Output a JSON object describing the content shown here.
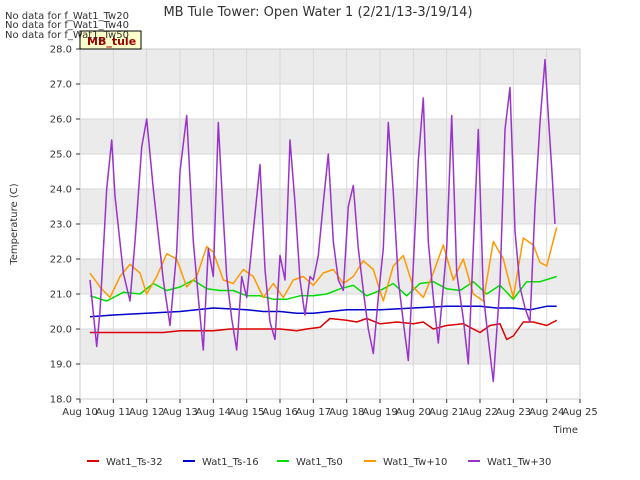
{
  "nodata_notes": [
    "No data for f_Wat1_Tw20",
    "No data for f_Wat1_Tw40",
    "No data for f_Wat1_Tw50"
  ],
  "badge_label": "MB_tule",
  "colors": {
    "band": "#ebebeb",
    "grid": "#d9d9d9",
    "badge_fill": "#ffffcc",
    "badge_text": "#990000"
  },
  "chart_data": {
    "type": "line",
    "title": "MB Tule Tower: Open Water 1 (2/21/13-3/19/14)",
    "xlabel": "Time",
    "ylabel": "Temperature (C)",
    "xlim": [
      10,
      25
    ],
    "ylim": [
      18.0,
      28.0
    ],
    "xticks": [
      {
        "value": 10,
        "label": "Aug 10"
      },
      {
        "value": 11,
        "label": "Aug 11"
      },
      {
        "value": 12,
        "label": "Aug 12"
      },
      {
        "value": 13,
        "label": "Aug 13"
      },
      {
        "value": 14,
        "label": "Aug 14"
      },
      {
        "value": 15,
        "label": "Aug 15"
      },
      {
        "value": 16,
        "label": "Aug 16"
      },
      {
        "value": 17,
        "label": "Aug 17"
      },
      {
        "value": 18,
        "label": "Aug 18"
      },
      {
        "value": 19,
        "label": "Aug 19"
      },
      {
        "value": 20,
        "label": "Aug 20"
      },
      {
        "value": 21,
        "label": "Aug 21"
      },
      {
        "value": 22,
        "label": "Aug 22"
      },
      {
        "value": 23,
        "label": "Aug 23"
      },
      {
        "value": 24,
        "label": "Aug 24"
      },
      {
        "value": 25,
        "label": "Aug 25"
      }
    ],
    "yticks": [
      "18.0",
      "19.0",
      "20.0",
      "21.0",
      "22.0",
      "23.0",
      "24.0",
      "25.0",
      "26.0",
      "27.0",
      "28.0"
    ],
    "grid": true,
    "legend_position": "bottom",
    "series": [
      {
        "name": "Wat1_Ts-32",
        "color": "#dd0000",
        "x": [
          10.3,
          11,
          11.5,
          12,
          12.5,
          13,
          13.5,
          14,
          14.5,
          15,
          15.5,
          16,
          16.5,
          16.8,
          17.2,
          17.5,
          18,
          18.3,
          18.6,
          19,
          19.5,
          20,
          20.3,
          20.6,
          21,
          21.5,
          22,
          22.3,
          22.6,
          22.8,
          23,
          23.3,
          23.6,
          24,
          24.3
        ],
        "y": [
          19.9,
          19.9,
          19.9,
          19.9,
          19.9,
          19.95,
          19.95,
          19.95,
          20.0,
          20.0,
          20.0,
          20.0,
          19.95,
          20.0,
          20.05,
          20.3,
          20.25,
          20.2,
          20.3,
          20.15,
          20.2,
          20.15,
          20.2,
          20.0,
          20.1,
          20.15,
          19.9,
          20.1,
          20.15,
          19.7,
          19.8,
          20.2,
          20.2,
          20.1,
          20.25
        ]
      },
      {
        "name": "Wat1_Ts-16",
        "color": "#0000cc",
        "x": [
          10.3,
          11,
          12,
          13,
          13.5,
          14,
          15,
          15.5,
          16,
          16.5,
          17,
          17.5,
          18,
          19,
          20,
          21,
          22,
          22.5,
          23,
          23.5,
          24,
          24.3
        ],
        "y": [
          20.35,
          20.4,
          20.45,
          20.5,
          20.55,
          20.6,
          20.55,
          20.5,
          20.5,
          20.45,
          20.45,
          20.5,
          20.55,
          20.55,
          20.6,
          20.65,
          20.65,
          20.6,
          20.6,
          20.55,
          20.65,
          20.65
        ]
      },
      {
        "name": "Wat1_Ts0",
        "color": "#00dd00",
        "x": [
          10.3,
          10.8,
          11.3,
          11.8,
          12.2,
          12.6,
          13,
          13.4,
          13.8,
          14.2,
          14.6,
          15,
          15.4,
          15.8,
          16.2,
          16.6,
          17,
          17.4,
          17.8,
          18.2,
          18.6,
          19,
          19.4,
          19.8,
          20.2,
          20.6,
          21,
          21.4,
          21.8,
          22.2,
          22.6,
          23,
          23.4,
          23.8,
          24.3
        ],
        "y": [
          20.95,
          20.8,
          21.05,
          21.0,
          21.3,
          21.1,
          21.2,
          21.4,
          21.15,
          21.1,
          21.1,
          20.95,
          20.95,
          20.85,
          20.85,
          20.95,
          20.95,
          21.0,
          21.15,
          21.25,
          20.95,
          21.1,
          21.3,
          20.95,
          21.3,
          21.35,
          21.15,
          21.1,
          21.35,
          21.0,
          21.25,
          20.85,
          21.35,
          21.35,
          21.5
        ]
      },
      {
        "name": "Wat1_Tw+10",
        "color": "#ff9900",
        "x": [
          10.3,
          10.6,
          10.9,
          11.2,
          11.5,
          11.8,
          12.0,
          12.3,
          12.6,
          12.9,
          13.2,
          13.5,
          13.8,
          14.0,
          14.3,
          14.6,
          14.9,
          15.2,
          15.5,
          15.8,
          16.1,
          16.4,
          16.7,
          17.0,
          17.3,
          17.6,
          17.9,
          18.2,
          18.5,
          18.8,
          19.1,
          19.4,
          19.7,
          20.0,
          20.3,
          20.6,
          20.9,
          21.2,
          21.5,
          21.8,
          22.1,
          22.4,
          22.7,
          23.0,
          23.3,
          23.6,
          23.8,
          24.0,
          24.3
        ],
        "y": [
          21.6,
          21.2,
          20.9,
          21.5,
          21.85,
          21.6,
          21.0,
          21.5,
          22.15,
          22.0,
          21.2,
          21.5,
          22.35,
          22.2,
          21.4,
          21.3,
          21.7,
          21.5,
          20.9,
          21.3,
          20.9,
          21.4,
          21.5,
          21.25,
          21.6,
          21.7,
          21.3,
          21.5,
          21.95,
          21.7,
          20.8,
          21.8,
          22.1,
          21.2,
          20.9,
          21.6,
          22.4,
          21.4,
          22.0,
          21.0,
          20.8,
          22.5,
          22.0,
          20.9,
          22.6,
          22.4,
          21.9,
          21.8,
          22.9
        ]
      },
      {
        "name": "Wat1_Tw+30",
        "color": "#9933cc",
        "x": [
          10.3,
          10.5,
          10.6,
          10.8,
          10.95,
          11.05,
          11.3,
          11.5,
          11.65,
          11.85,
          12.0,
          12.2,
          12.5,
          12.7,
          12.9,
          13.0,
          13.2,
          13.4,
          13.55,
          13.7,
          13.85,
          14.0,
          14.15,
          14.3,
          14.4,
          14.55,
          14.7,
          14.85,
          15.0,
          15.2,
          15.4,
          15.55,
          15.7,
          15.85,
          16.0,
          16.15,
          16.3,
          16.45,
          16.6,
          16.75,
          16.9,
          17.0,
          17.15,
          17.3,
          17.45,
          17.6,
          17.75,
          17.9,
          18.05,
          18.2,
          18.35,
          18.5,
          18.65,
          18.8,
          18.95,
          19.1,
          19.25,
          19.4,
          19.55,
          19.7,
          19.85,
          20.0,
          20.15,
          20.3,
          20.45,
          20.6,
          20.75,
          20.9,
          21.0,
          21.15,
          21.3,
          21.5,
          21.65,
          21.8,
          21.95,
          22.1,
          22.25,
          22.4,
          22.6,
          22.75,
          22.9,
          23.05,
          23.2,
          23.35,
          23.5,
          23.65,
          23.8,
          23.95,
          24.05,
          24.15,
          24.25
        ],
        "y": [
          21.4,
          19.5,
          20.5,
          24.0,
          25.4,
          23.8,
          21.6,
          20.8,
          22.5,
          25.2,
          26.0,
          24.0,
          21.4,
          20.1,
          22.2,
          24.5,
          26.1,
          22.5,
          20.9,
          19.4,
          22.3,
          21.5,
          25.9,
          23.2,
          21.5,
          20.3,
          19.4,
          21.5,
          20.9,
          22.8,
          24.7,
          21.7,
          20.2,
          19.7,
          22.1,
          21.4,
          25.4,
          23.6,
          21.4,
          20.4,
          21.5,
          21.4,
          22.1,
          23.6,
          25.0,
          22.5,
          21.4,
          21.1,
          23.5,
          24.1,
          22.3,
          21.1,
          20.0,
          19.3,
          20.9,
          22.3,
          25.9,
          23.9,
          21.4,
          20.2,
          19.1,
          21.8,
          24.8,
          26.6,
          22.5,
          20.9,
          19.6,
          21.2,
          22.3,
          26.1,
          21.6,
          20.3,
          19.0,
          22.3,
          25.7,
          21.0,
          19.7,
          18.5,
          21.3,
          25.7,
          26.9,
          22.8,
          21.2,
          20.6,
          20.2,
          23.5,
          25.9,
          27.7,
          26.1,
          24.6,
          23.0
        ]
      }
    ]
  }
}
